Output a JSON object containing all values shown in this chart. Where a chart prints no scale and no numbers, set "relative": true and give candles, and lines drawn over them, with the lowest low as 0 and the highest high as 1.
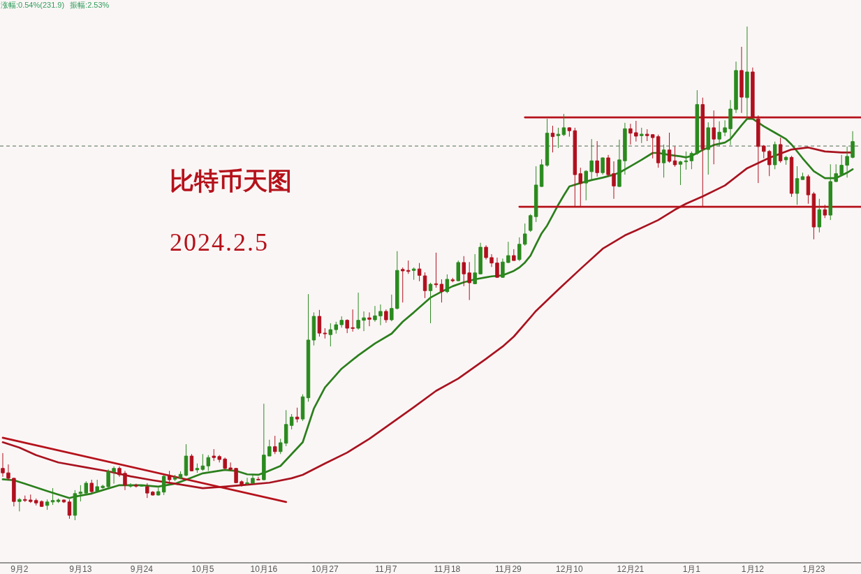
{
  "chart_data": {
    "type": "candlestick",
    "title": "比特币天图",
    "subtitle": "2024.2.5",
    "annotations": [
      "涨幅:0.54%(231.9)",
      "振幅:2.53%"
    ],
    "relative": true,
    "x": [
      "2023-08-30",
      "2023-08-31",
      "2023-09-01",
      "2023-09-02",
      "2023-09-03",
      "2023-09-04",
      "2023-09-05",
      "2023-09-06",
      "2023-09-07",
      "2023-09-08",
      "2023-09-09",
      "2023-09-10",
      "2023-09-11",
      "2023-09-12",
      "2023-09-13",
      "2023-09-14",
      "2023-09-15",
      "2023-09-16",
      "2023-09-17",
      "2023-09-18",
      "2023-09-19",
      "2023-09-20",
      "2023-09-21",
      "2023-09-22",
      "2023-09-23",
      "2023-09-24",
      "2023-09-25",
      "2023-09-26",
      "2023-09-27",
      "2023-09-28",
      "2023-09-29",
      "2023-09-30",
      "2023-10-01",
      "2023-10-02",
      "2023-10-03",
      "2023-10-04",
      "2023-10-05",
      "2023-10-06",
      "2023-10-07",
      "2023-10-08",
      "2023-10-09",
      "2023-10-10",
      "2023-10-11",
      "2023-10-12",
      "2023-10-13",
      "2023-10-14",
      "2023-10-15",
      "2023-10-16",
      "2023-10-17",
      "2023-10-18",
      "2023-10-19",
      "2023-10-20",
      "2023-10-21",
      "2023-10-22",
      "2023-10-23",
      "2023-10-24",
      "2023-10-25",
      "2023-10-26",
      "2023-10-27",
      "2023-10-28",
      "2023-10-29",
      "2023-10-30",
      "2023-10-31",
      "2023-11-01",
      "2023-11-02",
      "2023-11-03",
      "2023-11-04",
      "2023-11-05",
      "2023-11-06",
      "2023-11-07",
      "2023-11-08",
      "2023-11-09",
      "2023-11-10",
      "2023-11-11",
      "2023-11-12",
      "2023-11-13",
      "2023-11-14",
      "2023-11-15",
      "2023-11-16",
      "2023-11-17",
      "2023-11-18",
      "2023-11-19",
      "2023-11-20",
      "2023-11-21",
      "2023-11-22",
      "2023-11-23",
      "2023-11-24",
      "2023-11-25",
      "2023-11-26",
      "2023-11-27",
      "2023-11-28",
      "2023-11-29",
      "2023-11-30",
      "2023-12-01",
      "2023-12-02",
      "2023-12-03",
      "2023-12-04",
      "2023-12-05",
      "2023-12-06",
      "2023-12-07",
      "2023-12-08",
      "2023-12-09",
      "2023-12-10",
      "2023-12-11",
      "2023-12-12",
      "2023-12-13",
      "2023-12-14",
      "2023-12-15",
      "2023-12-16",
      "2023-12-17",
      "2023-12-18",
      "2023-12-19",
      "2023-12-20",
      "2023-12-21",
      "2023-12-22",
      "2023-12-23",
      "2023-12-24",
      "2023-12-25",
      "2023-12-26",
      "2023-12-27",
      "2023-12-28",
      "2023-12-29",
      "2023-12-30",
      "2023-12-31",
      "2024-01-01",
      "2024-01-02",
      "2024-01-03",
      "2024-01-04",
      "2024-01-05",
      "2024-01-06",
      "2024-01-07",
      "2024-01-08",
      "2024-01-09",
      "2024-01-10",
      "2024-01-11",
      "2024-01-12",
      "2024-01-13",
      "2024-01-14",
      "2024-01-15",
      "2024-01-16",
      "2024-01-17",
      "2024-01-18",
      "2024-01-19",
      "2024-01-20",
      "2024-01-21",
      "2024-01-22",
      "2024-01-23",
      "2024-01-24",
      "2024-01-25",
      "2024-01-26",
      "2024-01-27",
      "2024-01-28",
      "2024-01-29",
      "2024-01-30"
    ],
    "ohlc": [
      [
        0.105,
        0.136,
        0.088,
        0.096
      ],
      [
        0.096,
        0.113,
        0.081,
        0.085
      ],
      [
        0.085,
        0.086,
        0.028,
        0.038
      ],
      [
        0.038,
        0.045,
        0.018,
        0.042
      ],
      [
        0.042,
        0.05,
        0.037,
        0.04
      ],
      [
        0.041,
        0.052,
        0.035,
        0.038
      ],
      [
        0.04,
        0.044,
        0.03,
        0.035
      ],
      [
        0.038,
        0.04,
        0.027,
        0.028
      ],
      [
        0.03,
        0.042,
        0.021,
        0.037
      ],
      [
        0.037,
        0.065,
        0.031,
        0.04
      ],
      [
        0.038,
        0.044,
        0.035,
        0.041
      ],
      [
        0.041,
        0.042,
        0.035,
        0.037
      ],
      [
        0.037,
        0.042,
        0.003,
        0.01
      ],
      [
        0.01,
        0.061,
        0,
        0.054
      ],
      [
        0.054,
        0.071,
        0.038,
        0.057
      ],
      [
        0.055,
        0.079,
        0.054,
        0.075
      ],
      [
        0.075,
        0.082,
        0.055,
        0.058
      ],
      [
        0.059,
        0.082,
        0.058,
        0.068
      ],
      [
        0.066,
        0.072,
        0.064,
        0.069
      ],
      [
        0.068,
        0.103,
        0.064,
        0.099
      ],
      [
        0.098,
        0.109,
        0.074,
        0.105
      ],
      [
        0.105,
        0.109,
        0.088,
        0.092
      ],
      [
        0.095,
        0.1,
        0.061,
        0.071
      ],
      [
        0.069,
        0.075,
        0.066,
        0.071
      ],
      [
        0.071,
        0.074,
        0.066,
        0.069
      ],
      [
        0.069,
        0.072,
        0.068,
        0.071
      ],
      [
        0.068,
        0.075,
        0.045,
        0.055
      ],
      [
        0.057,
        0.059,
        0.05,
        0.051
      ],
      [
        0.051,
        0.066,
        0.05,
        0.058
      ],
      [
        0.057,
        0.092,
        0.051,
        0.089
      ],
      [
        0.089,
        0.1,
        0.075,
        0.082
      ],
      [
        0.083,
        0.092,
        0.079,
        0.086
      ],
      [
        0.085,
        0.099,
        0.083,
        0.093
      ],
      [
        0.091,
        0.154,
        0.089,
        0.13
      ],
      [
        0.13,
        0.134,
        0.099,
        0.1
      ],
      [
        0.102,
        0.115,
        0.096,
        0.105
      ],
      [
        0.103,
        0.134,
        0.1,
        0.11
      ],
      [
        0.11,
        0.132,
        0.1,
        0.127
      ],
      [
        0.13,
        0.144,
        0.12,
        0.127
      ],
      [
        0.129,
        0.132,
        0.117,
        0.123
      ],
      [
        0.124,
        0.127,
        0.103,
        0.105
      ],
      [
        0.106,
        0.117,
        0.1,
        0.103
      ],
      [
        0.105,
        0.106,
        0.075,
        0.076
      ],
      [
        0.078,
        0.081,
        0.068,
        0.071
      ],
      [
        0.074,
        0.086,
        0.071,
        0.076
      ],
      [
        0.075,
        0.092,
        0.074,
        0.085
      ],
      [
        0.083,
        0.088,
        0.081,
        0.082
      ],
      [
        0.082,
        0.236,
        0.081,
        0.132
      ],
      [
        0.13,
        0.163,
        0.13,
        0.149
      ],
      [
        0.149,
        0.171,
        0.134,
        0.139
      ],
      [
        0.139,
        0.165,
        0.134,
        0.157
      ],
      [
        0.156,
        0.223,
        0.15,
        0.194
      ],
      [
        0.192,
        0.215,
        0.184,
        0.209
      ],
      [
        0.209,
        0.228,
        0.198,
        0.205
      ],
      [
        0.205,
        0.255,
        0.201,
        0.25
      ],
      [
        0.248,
        0.458,
        0.24,
        0.365
      ],
      [
        0.365,
        0.421,
        0.354,
        0.413
      ],
      [
        0.413,
        0.426,
        0.372,
        0.379
      ],
      [
        0.379,
        0.389,
        0.368,
        0.378
      ],
      [
        0.376,
        0.399,
        0.352,
        0.386
      ],
      [
        0.386,
        0.402,
        0.378,
        0.396
      ],
      [
        0.396,
        0.413,
        0.39,
        0.405
      ],
      [
        0.405,
        0.407,
        0.379,
        0.389
      ],
      [
        0.39,
        0.427,
        0.382,
        0.389
      ],
      [
        0.389,
        0.461,
        0.386,
        0.405
      ],
      [
        0.405,
        0.423,
        0.383,
        0.41
      ],
      [
        0.41,
        0.421,
        0.393,
        0.407
      ],
      [
        0.406,
        0.434,
        0.402,
        0.414
      ],
      [
        0.414,
        0.437,
        0.395,
        0.423
      ],
      [
        0.423,
        0.427,
        0.4,
        0.406
      ],
      [
        0.406,
        0.457,
        0.403,
        0.429
      ],
      [
        0.429,
        0.545,
        0.427,
        0.506
      ],
      [
        0.508,
        0.512,
        0.441,
        0.505
      ],
      [
        0.506,
        0.526,
        0.499,
        0.504
      ],
      [
        0.506,
        0.512,
        0.487,
        0.509
      ],
      [
        0.509,
        0.521,
        0.484,
        0.496
      ],
      [
        0.495,
        0.502,
        0.45,
        0.465
      ],
      [
        0.465,
        0.481,
        0.399,
        0.478
      ],
      [
        0.479,
        0.542,
        0.471,
        0.477
      ],
      [
        0.478,
        0.488,
        0.441,
        0.463
      ],
      [
        0.463,
        0.498,
        0.46,
        0.488
      ],
      [
        0.487,
        0.491,
        0.482,
        0.485
      ],
      [
        0.485,
        0.526,
        0.484,
        0.522
      ],
      [
        0.522,
        0.535,
        0.474,
        0.499
      ],
      [
        0.501,
        0.523,
        0.446,
        0.481
      ],
      [
        0.479,
        0.539,
        0.478,
        0.501
      ],
      [
        0.499,
        0.562,
        0.498,
        0.553
      ],
      [
        0.553,
        0.557,
        0.528,
        0.532
      ],
      [
        0.532,
        0.539,
        0.513,
        0.521
      ],
      [
        0.521,
        0.532,
        0.491,
        0.492
      ],
      [
        0.492,
        0.53,
        0.491,
        0.523
      ],
      [
        0.522,
        0.564,
        0.521,
        0.536
      ],
      [
        0.536,
        0.549,
        0.526,
        0.526
      ],
      [
        0.528,
        0.573,
        0.525,
        0.559
      ],
      [
        0.559,
        0.601,
        0.556,
        0.58
      ],
      [
        0.587,
        0.62,
        0.584,
        0.617
      ],
      [
        0.615,
        0.717,
        0.604,
        0.679
      ],
      [
        0.676,
        0.731,
        0.675,
        0.72
      ],
      [
        0.719,
        0.813,
        0.716,
        0.784
      ],
      [
        0.784,
        0.799,
        0.745,
        0.777
      ],
      [
        0.779,
        0.795,
        0.754,
        0.782
      ],
      [
        0.781,
        0.823,
        0.778,
        0.795
      ],
      [
        0.795,
        0.796,
        0.777,
        0.789
      ],
      [
        0.789,
        0.795,
        0.636,
        0.7
      ],
      [
        0.702,
        0.714,
        0.636,
        0.682
      ],
      [
        0.683,
        0.709,
        0.648,
        0.707
      ],
      [
        0.706,
        0.772,
        0.69,
        0.728
      ],
      [
        0.728,
        0.768,
        0.696,
        0.704
      ],
      [
        0.704,
        0.735,
        0.7,
        0.734
      ],
      [
        0.734,
        0.74,
        0.696,
        0.7
      ],
      [
        0.702,
        0.727,
        0.651,
        0.677
      ],
      [
        0.676,
        0.771,
        0.675,
        0.73
      ],
      [
        0.728,
        0.805,
        0.7,
        0.793
      ],
      [
        0.793,
        0.803,
        0.761,
        0.784
      ],
      [
        0.785,
        0.809,
        0.767,
        0.778
      ],
      [
        0.779,
        0.795,
        0.764,
        0.782
      ],
      [
        0.782,
        0.792,
        0.768,
        0.779
      ],
      [
        0.781,
        0.782,
        0.733,
        0.775
      ],
      [
        0.777,
        0.781,
        0.714,
        0.724
      ],
      [
        0.724,
        0.761,
        0.694,
        0.75
      ],
      [
        0.75,
        0.785,
        0.724,
        0.727
      ],
      [
        0.728,
        0.757,
        0.716,
        0.72
      ],
      [
        0.721,
        0.728,
        0.679,
        0.726
      ],
      [
        0.726,
        0.747,
        0.71,
        0.728
      ],
      [
        0.728,
        0.747,
        0.711,
        0.743
      ],
      [
        0.743,
        0.871,
        0.74,
        0.842
      ],
      [
        0.842,
        0.856,
        0.636,
        0.752
      ],
      [
        0.751,
        0.806,
        0.7,
        0.795
      ],
      [
        0.795,
        0.83,
        0.721,
        0.772
      ],
      [
        0.772,
        0.808,
        0.757,
        0.786
      ],
      [
        0.786,
        0.81,
        0.778,
        0.795
      ],
      [
        0.793,
        0.851,
        0.76,
        0.833
      ],
      [
        0.832,
        0.929,
        0.825,
        0.911
      ],
      [
        0.911,
        0.959,
        0.825,
        0.857
      ],
      [
        0.856,
        1,
        0.813,
        0.908
      ],
      [
        0.908,
        0.917,
        0.813,
        0.816
      ],
      [
        0.813,
        0.82,
        0.683,
        0.757
      ],
      [
        0.758,
        0.76,
        0.733,
        0.747
      ],
      [
        0.747,
        0.75,
        0.697,
        0.72
      ],
      [
        0.72,
        0.767,
        0.711,
        0.761
      ],
      [
        0.761,
        0.775,
        0.724,
        0.728
      ],
      [
        0.73,
        0.738,
        0.72,
        0.735
      ],
      [
        0.735,
        0.738,
        0.655,
        0.662
      ],
      [
        0.662,
        0.717,
        0.639,
        0.692
      ],
      [
        0.69,
        0.704,
        0.69,
        0.696
      ],
      [
        0.696,
        0.7,
        0.641,
        0.659
      ],
      [
        0.661,
        0.665,
        0.569,
        0.594
      ],
      [
        0.594,
        0.651,
        0.583,
        0.629
      ],
      [
        0.629,
        0.639,
        0.612,
        0.618
      ],
      [
        0.618,
        0.721,
        0.608,
        0.686
      ],
      [
        0.686,
        0.721,
        0.685,
        0.702
      ],
      [
        0.7,
        0.74,
        0.697,
        0.719
      ],
      [
        0.719,
        0.757,
        0.694,
        0.737
      ],
      [
        0.735,
        0.788,
        0.733,
        0.767
      ]
    ],
    "colors": [
      "#b0101e",
      "#b0101e",
      "#b0101e",
      "#2a8a1e",
      "#b0101e",
      "#b0101e",
      "#b0101e",
      "#b0101e",
      "#2a8a1e",
      "#2a8a1e",
      "#2a8a1e",
      "#b0101e",
      "#b0101e",
      "#2a8a1e",
      "#2a8a1e",
      "#2a8a1e",
      "#b0101e",
      "#2a8a1e",
      "#2a8a1e",
      "#2a8a1e",
      "#2a8a1e",
      "#b0101e",
      "#b0101e",
      "#2a8a1e",
      "#b0101e",
      "#2a8a1e",
      "#b0101e",
      "#b0101e",
      "#2a8a1e",
      "#2a8a1e",
      "#b0101e",
      "#2a8a1e",
      "#2a8a1e",
      "#2a8a1e",
      "#b0101e",
      "#2a8a1e",
      "#2a8a1e",
      "#2a8a1e",
      "#b0101e",
      "#b0101e",
      "#b0101e",
      "#b0101e",
      "#b0101e",
      "#b0101e",
      "#2a8a1e",
      "#2a8a1e",
      "#b0101e",
      "#2a8a1e",
      "#2a8a1e",
      "#b0101e",
      "#2a8a1e",
      "#2a8a1e",
      "#2a8a1e",
      "#b0101e",
      "#2a8a1e",
      "#2a8a1e",
      "#2a8a1e",
      "#b0101e",
      "#b0101e",
      "#2a8a1e",
      "#2a8a1e",
      "#2a8a1e",
      "#b0101e",
      "#b0101e",
      "#2a8a1e",
      "#2a8a1e",
      "#b0101e",
      "#2a8a1e",
      "#2a8a1e",
      "#b0101e",
      "#2a8a1e",
      "#2a8a1e",
      "#b0101e",
      "#b0101e",
      "#2a8a1e",
      "#b0101e",
      "#b0101e",
      "#2a8a1e",
      "#b0101e",
      "#b0101e",
      "#2a8a1e",
      "#b0101e",
      "#2a8a1e",
      "#b0101e",
      "#b0101e",
      "#2a8a1e",
      "#2a8a1e",
      "#b0101e",
      "#b0101e",
      "#b0101e",
      "#2a8a1e",
      "#2a8a1e",
      "#b0101e",
      "#2a8a1e",
      "#2a8a1e",
      "#2a8a1e",
      "#2a8a1e",
      "#2a8a1e",
      "#2a8a1e",
      "#b0101e",
      "#2a8a1e",
      "#2a8a1e",
      "#b0101e",
      "#b0101e",
      "#b0101e",
      "#2a8a1e",
      "#2a8a1e",
      "#b0101e",
      "#2a8a1e",
      "#b0101e",
      "#b0101e",
      "#2a8a1e",
      "#2a8a1e",
      "#b0101e",
      "#b0101e",
      "#2a8a1e",
      "#b0101e",
      "#b0101e",
      "#b0101e",
      "#2a8a1e",
      "#b0101e",
      "#b0101e",
      "#2a8a1e",
      "#2a8a1e",
      "#2a8a1e",
      "#2a8a1e",
      "#b0101e",
      "#2a8a1e",
      "#b0101e",
      "#2a8a1e",
      "#2a8a1e",
      "#2a8a1e",
      "#2a8a1e",
      "#b0101e",
      "#2a8a1e",
      "#b0101e",
      "#b0101e",
      "#b0101e",
      "#b0101e",
      "#2a8a1e",
      "#b0101e",
      "#2a8a1e",
      "#b0101e",
      "#2a8a1e",
      "#2a8a1e",
      "#b0101e",
      "#b0101e",
      "#2a8a1e",
      "#b0101e",
      "#2a8a1e",
      "#2a8a1e",
      "#2a8a1e",
      "#2a8a1e",
      "#2a8a1e"
    ],
    "xlim": [
      "2023-08-29T12:00",
      "2024-01-31T12:00"
    ],
    "xticks": [
      {
        "value": "2023-09-02",
        "label": "9月2"
      },
      {
        "value": "2023-09-13",
        "label": "9月13"
      },
      {
        "value": "2023-09-24",
        "label": "9月24"
      },
      {
        "value": "2023-10-05",
        "label": "10月5"
      },
      {
        "value": "2023-10-16",
        "label": "10月16"
      },
      {
        "value": "2023-10-27",
        "label": "10月27"
      },
      {
        "value": "2023-11-07",
        "label": "11月7"
      },
      {
        "value": "2023-11-18",
        "label": "11月18"
      },
      {
        "value": "2023-11-29",
        "label": "11月29"
      },
      {
        "value": "2023-12-10",
        "label": "12月10"
      },
      {
        "value": "2023-12-21",
        "label": "12月21"
      },
      {
        "value": "2024-01-01",
        "label": "1月1"
      },
      {
        "value": "2024-01-12",
        "label": "1月12"
      },
      {
        "value": "2024-01-23",
        "label": "1月23"
      }
    ],
    "series": [
      {
        "type": "line",
        "color": "#2b7f1c",
        "x": [
          "2023-08-30",
          "2023-09-01",
          "2023-09-03",
          "2023-09-07",
          "2023-09-11",
          "2023-09-12",
          "2023-09-15",
          "2023-09-17",
          "2023-09-20",
          "2023-09-24",
          "2023-09-27",
          "2023-09-30",
          "2023-10-02",
          "2023-10-05",
          "2023-10-09",
          "2023-10-11",
          "2023-10-13",
          "2023-10-15",
          "2023-10-16",
          "2023-10-19",
          "2023-10-21",
          "2023-10-23",
          "2023-10-25",
          "2023-10-27",
          "2023-10-30",
          "2023-11-02",
          "2023-11-05",
          "2023-11-08",
          "2023-11-10",
          "2023-11-12",
          "2023-11-15",
          "2023-11-17",
          "2023-11-19",
          "2023-11-21",
          "2023-11-23",
          "2023-11-25",
          "2023-11-26",
          "2023-11-28",
          "2023-11-30",
          "2023-12-01",
          "2023-12-02",
          "2023-12-03",
          "2023-12-04",
          "2023-12-05",
          "2023-12-06",
          "2023-12-07",
          "2023-12-08",
          "2023-12-09",
          "2023-12-10",
          "2023-12-12",
          "2023-12-14",
          "2023-12-16",
          "2023-12-18",
          "2023-12-19",
          "2023-12-21",
          "2023-12-23",
          "2023-12-25",
          "2023-12-26",
          "2023-12-28",
          "2023-12-30",
          "2023-12-31",
          "2024-01-01",
          "2024-01-03",
          "2024-01-05",
          "2024-01-07",
          "2024-01-08",
          "2024-01-10",
          "2024-01-11",
          "2024-01-12",
          "2024-01-14",
          "2024-01-16",
          "2024-01-18",
          "2024-01-19",
          "2024-01-21",
          "2024-01-23",
          "2024-01-25",
          "2024-01-27",
          "2024-01-29",
          "2024-01-30"
        ],
        "values": [
          0.083,
          0.081,
          0.074,
          0.059,
          0.045,
          0.048,
          0.054,
          0.061,
          0.071,
          0.071,
          0.068,
          0.074,
          0.082,
          0.095,
          0.102,
          0.1,
          0.093,
          0.092,
          0.096,
          0.11,
          0.134,
          0.158,
          0.226,
          0.269,
          0.307,
          0.334,
          0.358,
          0.378,
          0.402,
          0.421,
          0.451,
          0.463,
          0.474,
          0.482,
          0.488,
          0.492,
          0.494,
          0.496,
          0.505,
          0.512,
          0.522,
          0.536,
          0.559,
          0.581,
          0.597,
          0.618,
          0.639,
          0.658,
          0.676,
          0.683,
          0.689,
          0.694,
          0.7,
          0.704,
          0.717,
          0.73,
          0.744,
          0.744,
          0.74,
          0.737,
          0.735,
          0.738,
          0.75,
          0.76,
          0.765,
          0.772,
          0.8,
          0.813,
          0.813,
          0.798,
          0.785,
          0.772,
          0.761,
          0.733,
          0.707,
          0.693,
          0.693,
          0.704,
          0.711
        ]
      },
      {
        "type": "line",
        "color": "#a8131f",
        "x": [
          "2023-08-30",
          "2023-09-02",
          "2023-09-05",
          "2023-09-09",
          "2023-09-14",
          "2023-09-18",
          "2023-09-22",
          "2023-09-26",
          "2023-09-30",
          "2023-10-05",
          "2023-10-09",
          "2023-10-13",
          "2023-10-17",
          "2023-10-21",
          "2023-10-23",
          "2023-10-27",
          "2023-10-31",
          "2023-11-04",
          "2023-11-09",
          "2023-11-12",
          "2023-11-16",
          "2023-11-20",
          "2023-11-25",
          "2023-11-28",
          "2023-11-30",
          "2023-12-04",
          "2023-12-08",
          "2023-12-12",
          "2023-12-16",
          "2023-12-20",
          "2023-12-22",
          "2023-12-26",
          "2023-12-29",
          "2023-12-31",
          "2024-01-03",
          "2024-01-07",
          "2024-01-11",
          "2024-01-15",
          "2024-01-19",
          "2024-01-22",
          "2024-01-25",
          "2024-01-28",
          "2024-01-30"
        ],
        "values": [
          0.158,
          0.147,
          0.132,
          0.117,
          0.107,
          0.099,
          0.089,
          0.081,
          0.074,
          0.065,
          0.068,
          0.072,
          0.076,
          0.085,
          0.092,
          0.115,
          0.137,
          0.165,
          0.205,
          0.229,
          0.262,
          0.287,
          0.327,
          0.352,
          0.372,
          0.424,
          0.467,
          0.509,
          0.55,
          0.577,
          0.587,
          0.608,
          0.629,
          0.641,
          0.656,
          0.678,
          0.713,
          0.734,
          0.751,
          0.755,
          0.747,
          0.745,
          0.745
        ]
      },
      {
        "type": "line",
        "color": "#b5121b",
        "x": [
          "2023-08-30",
          "2023-10-20"
        ],
        "values": [
          0.167,
          0.037
        ]
      },
      {
        "type": "line",
        "color": "#b5121b",
        "x": [
          "2023-12-02",
          "2024-01-31T12:00"
        ],
        "values": [
          0.816,
          0.816
        ]
      },
      {
        "type": "line",
        "color": "#b5121b",
        "x": [
          "2023-12-01",
          "2024-01-31T12:00"
        ],
        "values": [
          0.635,
          0.635
        ]
      }
    ],
    "ref_lines": [
      {
        "axis": "y",
        "value": 0.758,
        "color": "#4d6b4d",
        "line_style": "dashed"
      }
    ]
  }
}
